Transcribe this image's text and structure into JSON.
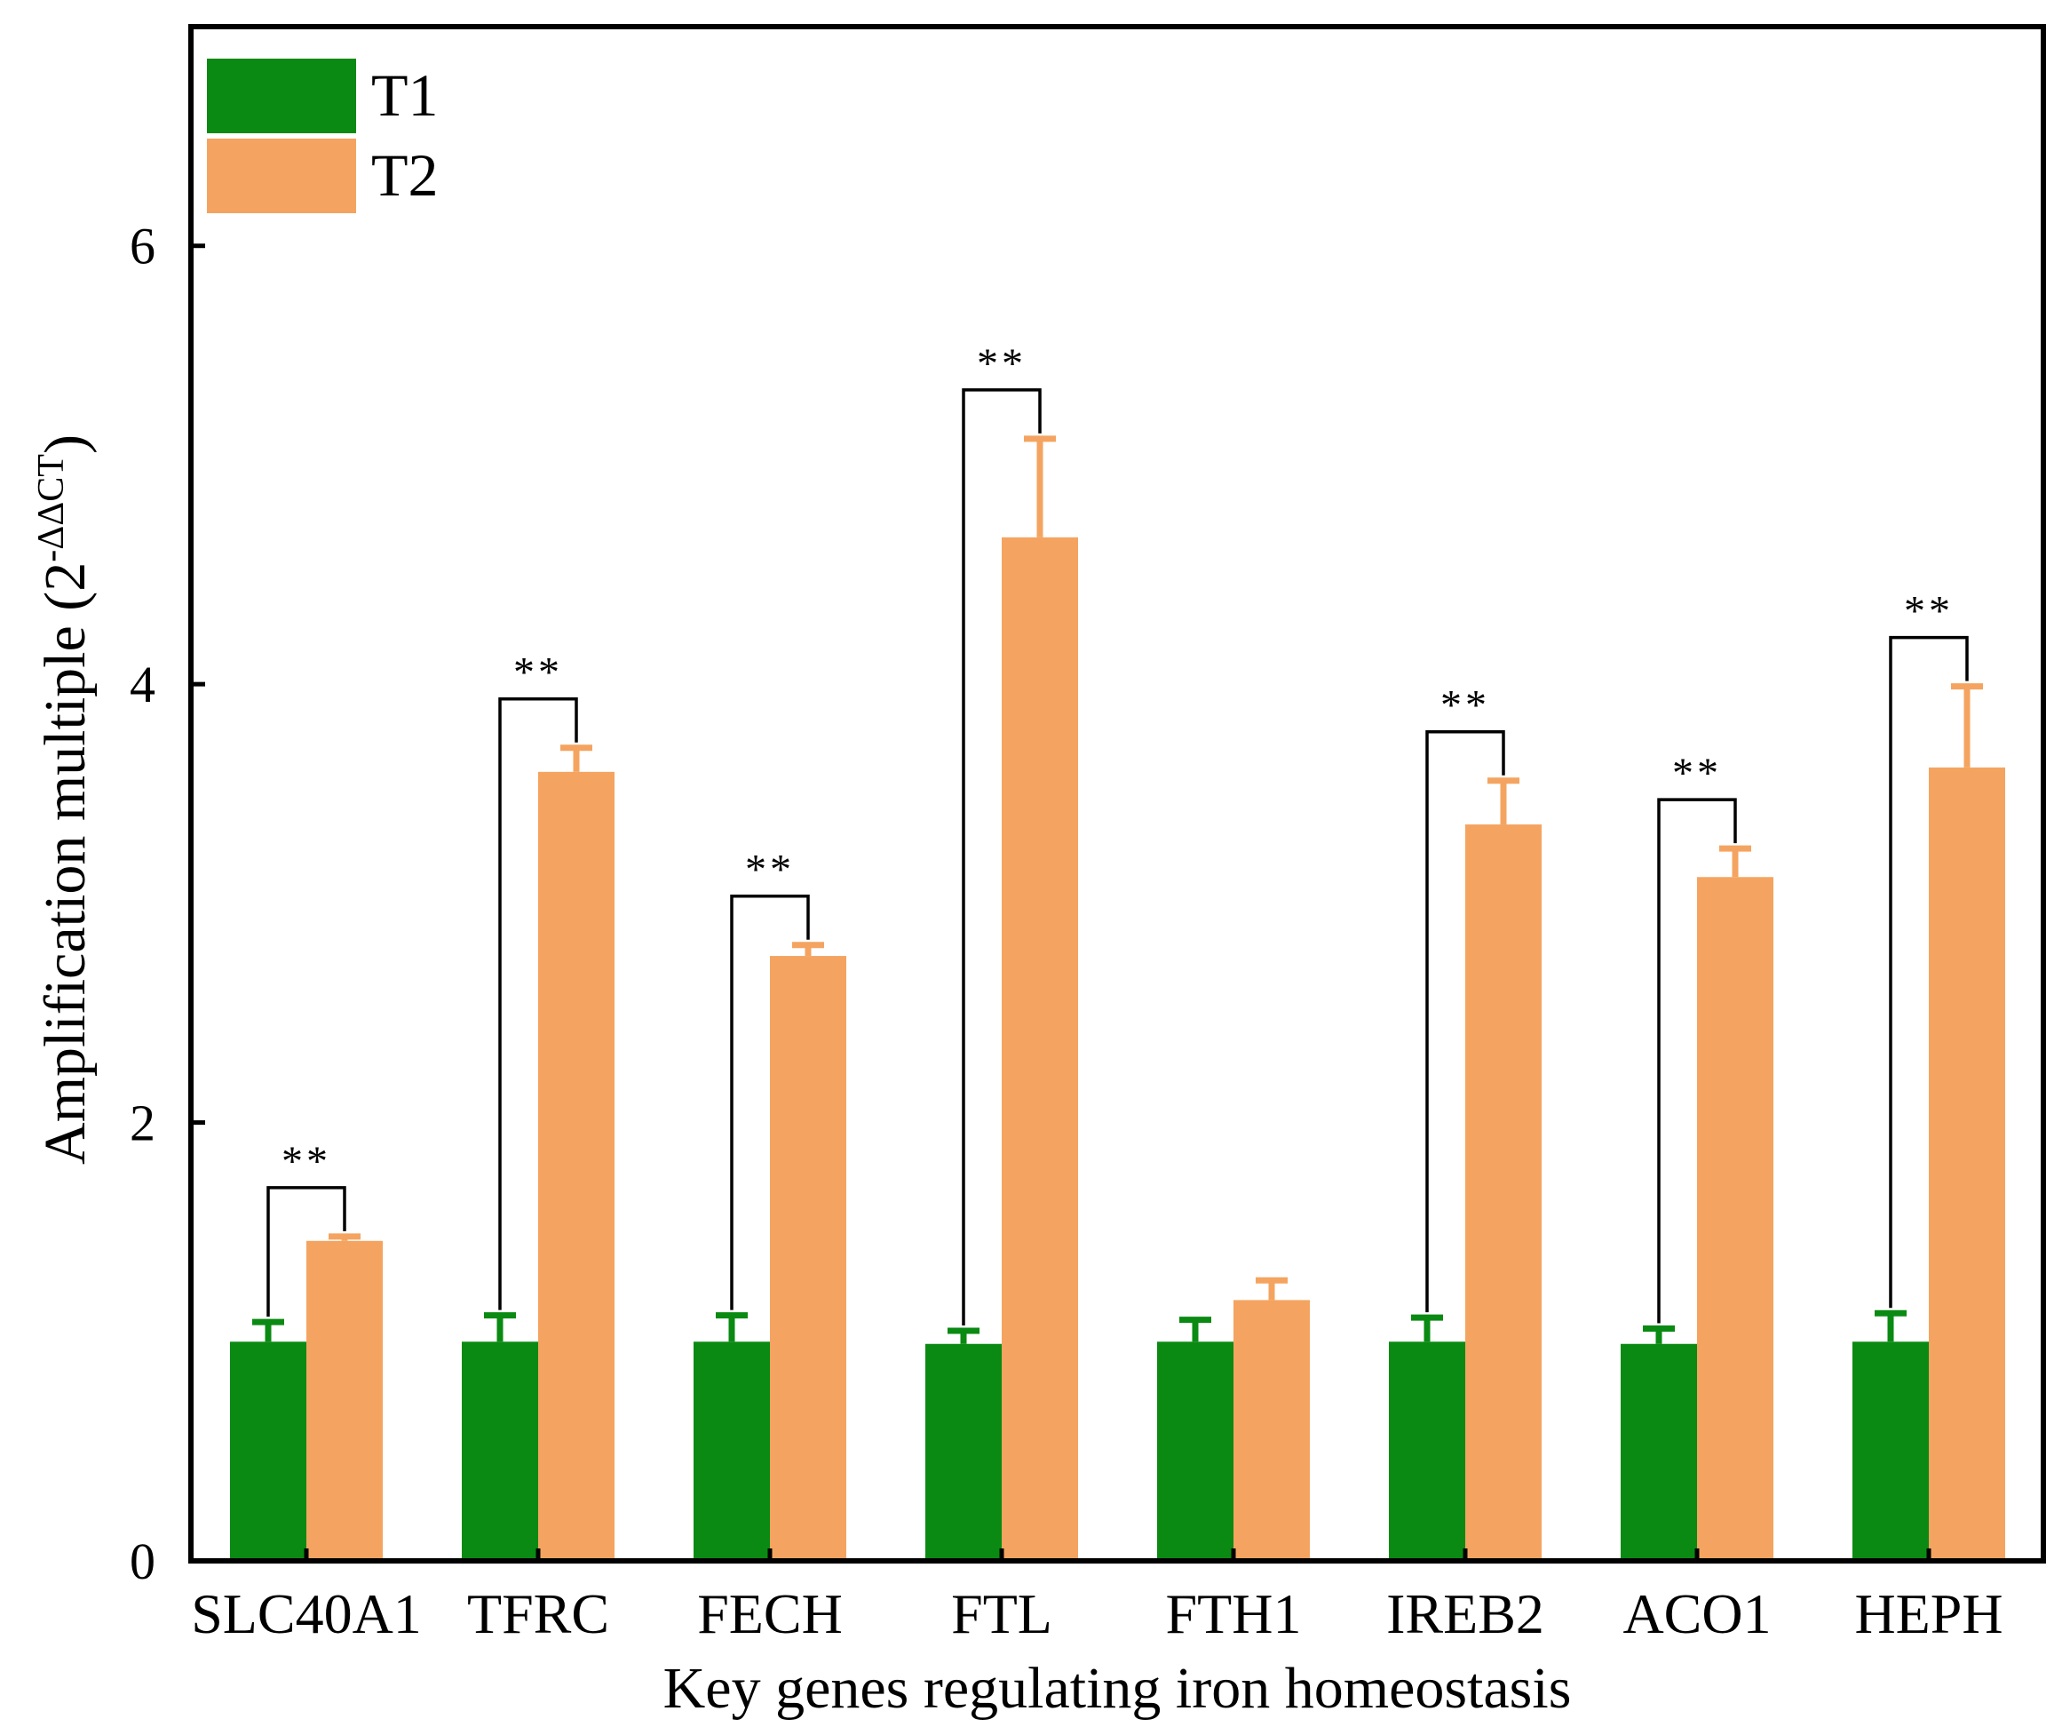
{
  "chart_data": {
    "type": "bar",
    "title": "",
    "xlabel": "Key genes regulating iron homeostasis",
    "ylabel": "Amplification multiple (2",
    "ylabel_superscript": "-ΔΔCT",
    "ylabel_close": ")",
    "ylim": [
      0,
      7
    ],
    "yticks": [
      0,
      2,
      4,
      6
    ],
    "grid": false,
    "legend_position": "top-left",
    "categories": [
      "SLC40A1",
      "TFRC",
      "FECH",
      "FTL",
      "FTH1",
      "IREB2",
      "ACO1",
      "HEPH"
    ],
    "series": [
      {
        "name": "T1",
        "color": "#0a8a12",
        "values": [
          1.0,
          1.0,
          1.0,
          0.99,
          1.0,
          1.0,
          0.99,
          1.0
        ],
        "errors": [
          0.09,
          0.12,
          0.12,
          0.06,
          0.1,
          0.11,
          0.07,
          0.13
        ]
      },
      {
        "name": "T2",
        "color": "#f4a460",
        "values": [
          1.46,
          3.6,
          2.76,
          4.67,
          1.19,
          3.36,
          3.12,
          3.62
        ],
        "errors": [
          0.02,
          0.11,
          0.05,
          0.45,
          0.09,
          0.2,
          0.13,
          0.37
        ]
      }
    ],
    "significance": [
      {
        "category": "SLC40A1",
        "label": "**"
      },
      {
        "category": "TFRC",
        "label": "**"
      },
      {
        "category": "FECH",
        "label": "**"
      },
      {
        "category": "FTL",
        "label": "**"
      },
      {
        "category": "IREB2",
        "label": "**"
      },
      {
        "category": "ACO1",
        "label": "**"
      },
      {
        "category": "HEPH",
        "label": "**"
      }
    ]
  }
}
